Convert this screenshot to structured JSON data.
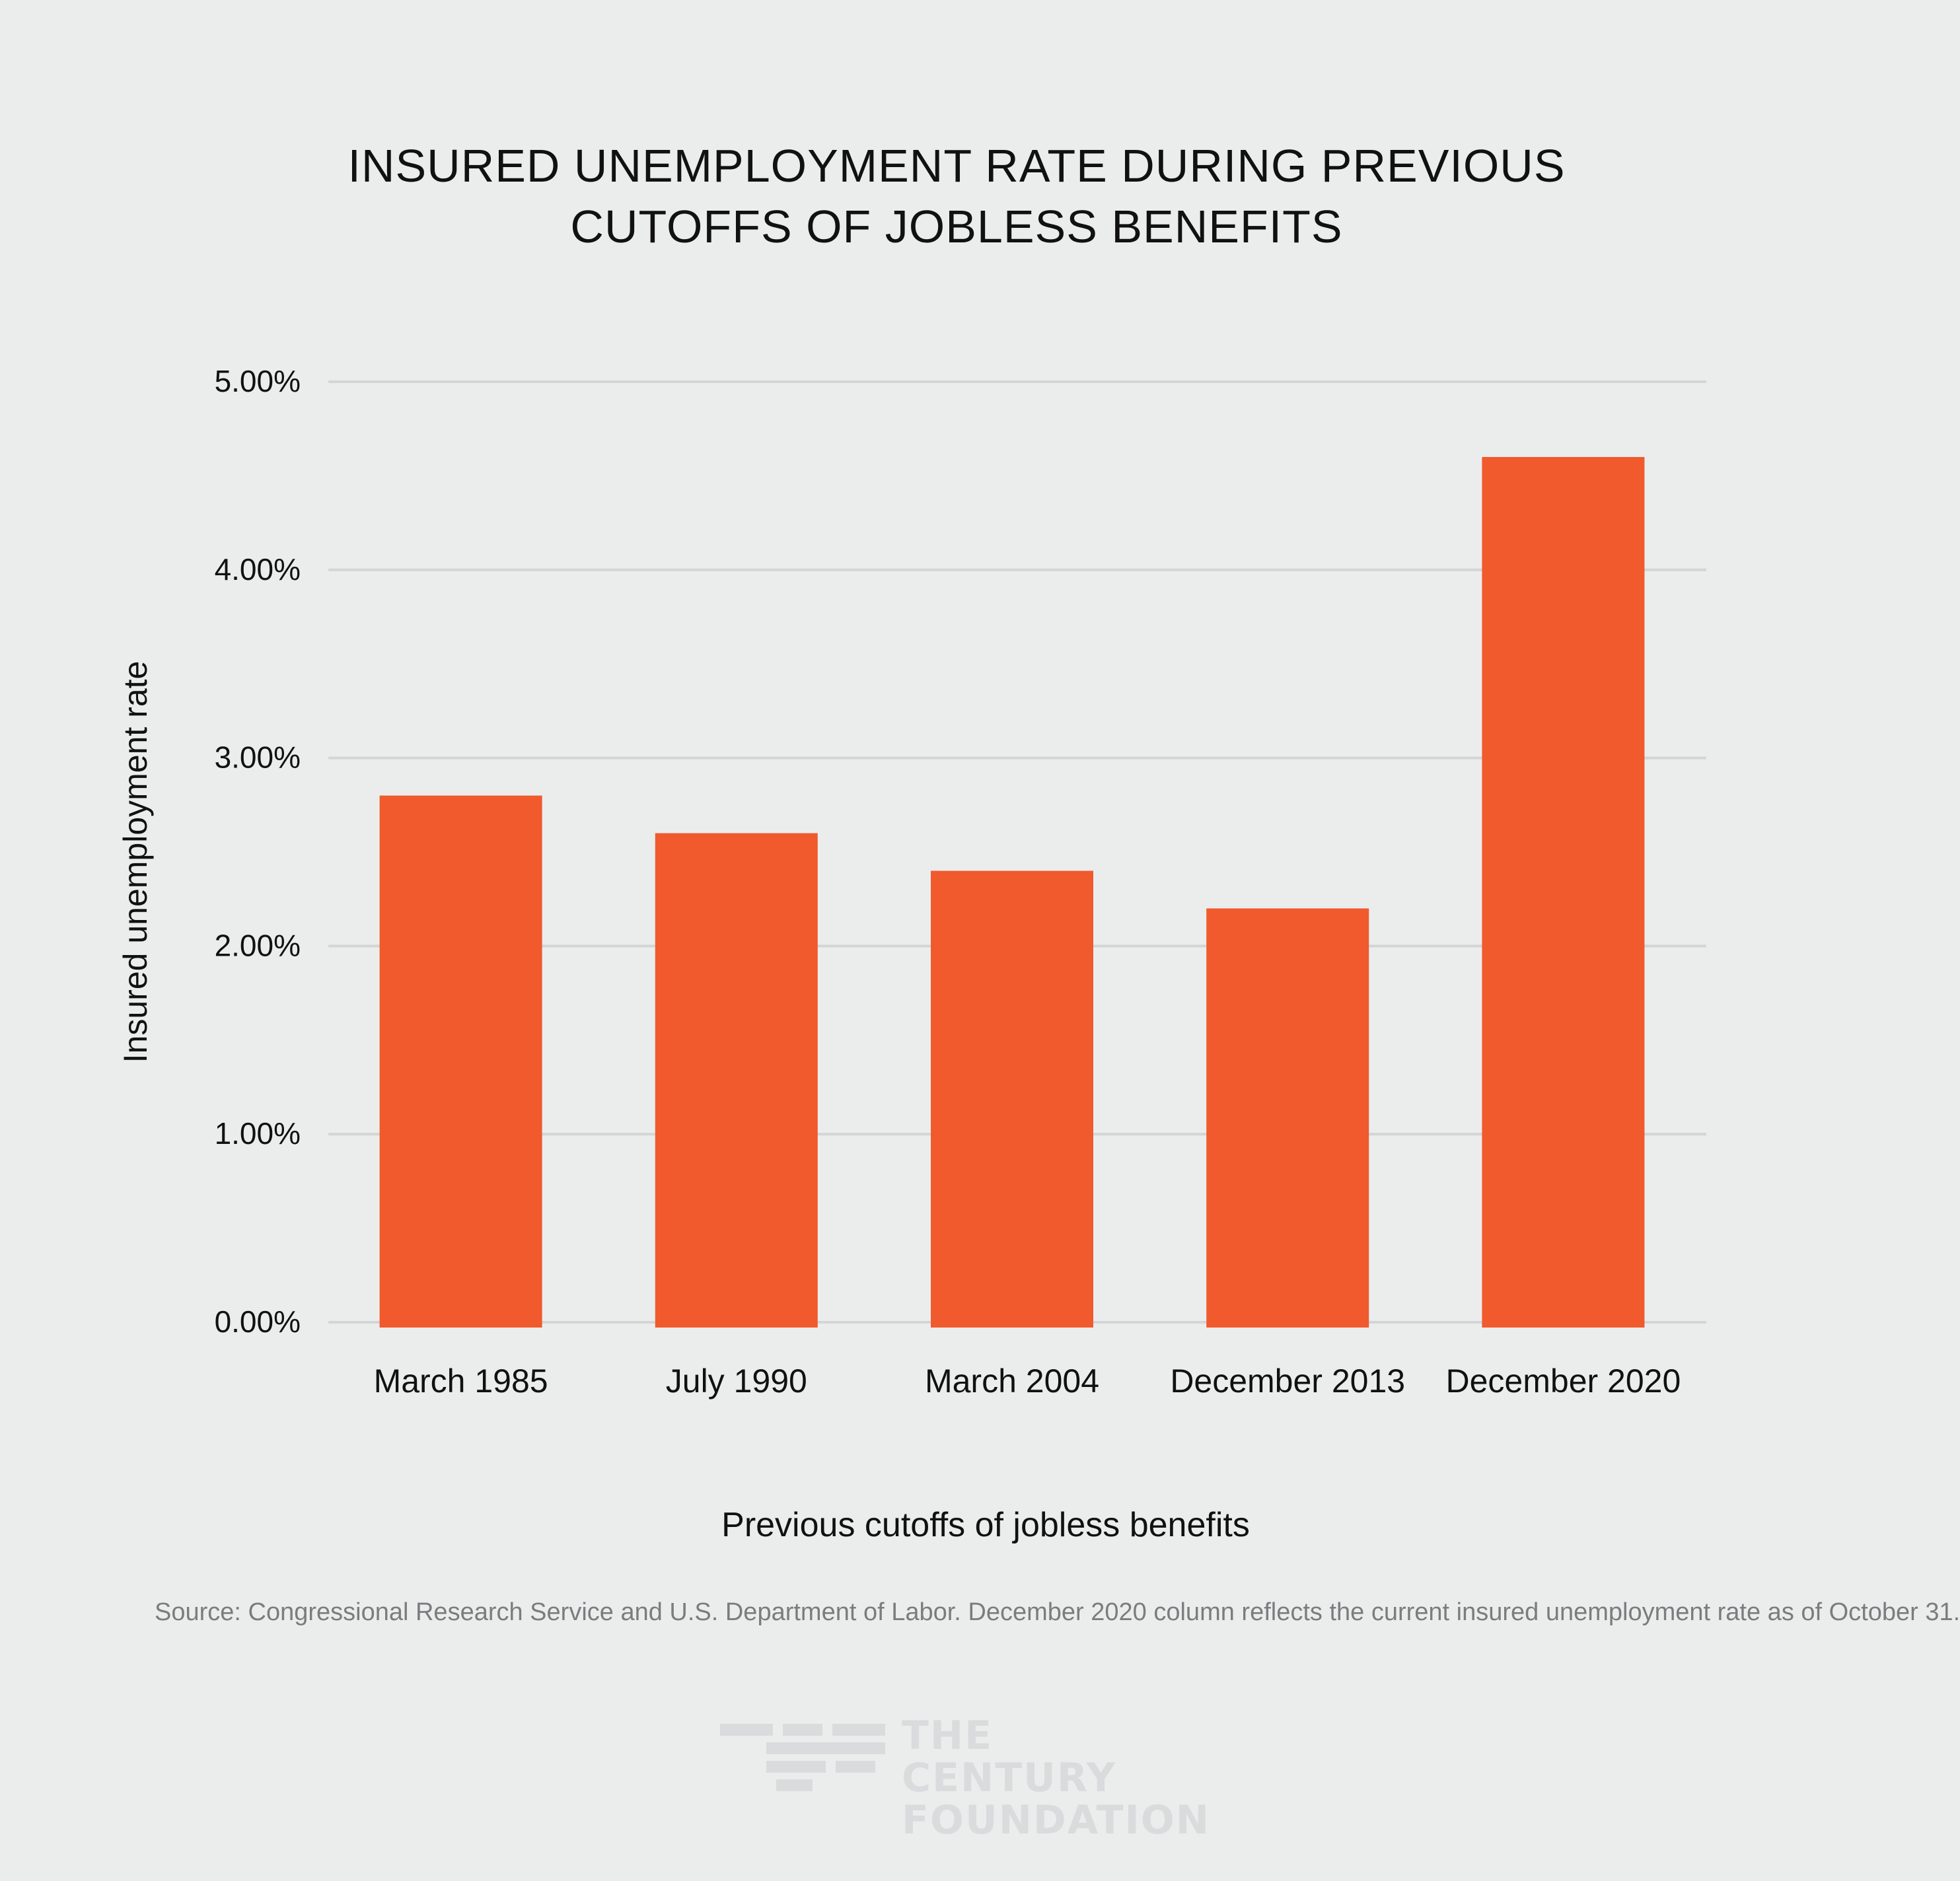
{
  "title_lines": [
    "INSURED UNEMPLOYMENT RATE DURING PREVIOUS",
    "CUTOFFS OF JOBLESS BENEFITS"
  ],
  "chart_data": {
    "type": "bar",
    "title": "INSURED UNEMPLOYMENT RATE DURING PREVIOUS CUTOFFS OF JOBLESS BENEFITS",
    "categories": [
      "March 1985",
      "July 1990",
      "March 2004",
      "December 2013",
      "December 2020"
    ],
    "values": [
      2.8,
      2.6,
      2.4,
      2.2,
      4.6
    ],
    "unit": "%",
    "xlabel": "Previous cutoffs of jobless benefits",
    "ylabel": "Insured unemployment rate",
    "ylim": [
      0,
      5
    ],
    "yticks": [
      0,
      1,
      2,
      3,
      4,
      5
    ],
    "ytick_labels": [
      "0.00%",
      "1.00%",
      "2.00%",
      "3.00%",
      "4.00%",
      "5.00%"
    ],
    "grid": true,
    "bar_color": "#f05a2c"
  },
  "source": "Source:  Congressional Research Service and U.S. Department of Labor. December 2020 column reflects the current insured unemployment rate as of October 31.",
  "logo": {
    "line1": "THE CENTURY",
    "line2": "FOUNDATION",
    "color": "#d9dbdc"
  }
}
